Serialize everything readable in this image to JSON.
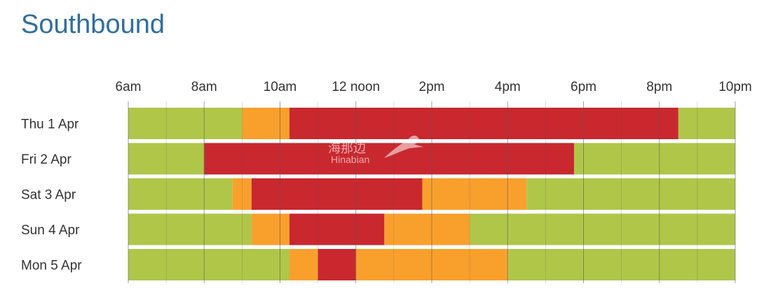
{
  "title": "Southbound",
  "watermark": {
    "cn": "海那边",
    "en": "Hinabian"
  },
  "colors": {
    "light": "#b0c649",
    "moderate": "#f9a02c",
    "heavy": "#c9282f",
    "grid": "#555555"
  },
  "chart_data": {
    "type": "timeline",
    "title": "Southbound",
    "x_unit": "hour",
    "xlim": [
      6,
      22
    ],
    "x_ticks": [
      {
        "value": 6,
        "label": "6am"
      },
      {
        "value": 8,
        "label": "8am"
      },
      {
        "value": 10,
        "label": "10am"
      },
      {
        "value": 12,
        "label": "12 noon"
      },
      {
        "value": 14,
        "label": "2pm"
      },
      {
        "value": 16,
        "label": "4pm"
      },
      {
        "value": 18,
        "label": "6pm"
      },
      {
        "value": 20,
        "label": "8pm"
      },
      {
        "value": 22,
        "label": "10pm"
      }
    ],
    "grid": "vertical",
    "rows": [
      {
        "label": "Thu 1 Apr",
        "segments": [
          {
            "start": 6,
            "end": 9,
            "level": "light"
          },
          {
            "start": 9,
            "end": 10.25,
            "level": "moderate"
          },
          {
            "start": 10.25,
            "end": 20.5,
            "level": "heavy"
          },
          {
            "start": 20.5,
            "end": 22,
            "level": "light"
          }
        ]
      },
      {
        "label": "Fri 2 Apr",
        "segments": [
          {
            "start": 6,
            "end": 8,
            "level": "light"
          },
          {
            "start": 8,
            "end": 17.75,
            "level": "heavy"
          },
          {
            "start": 17.75,
            "end": 22,
            "level": "light"
          }
        ]
      },
      {
        "label": "Sat 3 Apr",
        "segments": [
          {
            "start": 6,
            "end": 8.75,
            "level": "light"
          },
          {
            "start": 8.75,
            "end": 9.25,
            "level": "moderate"
          },
          {
            "start": 9.25,
            "end": 13.75,
            "level": "heavy"
          },
          {
            "start": 13.75,
            "end": 16.5,
            "level": "moderate"
          },
          {
            "start": 16.5,
            "end": 22,
            "level": "light"
          }
        ]
      },
      {
        "label": "Sun 4 Apr",
        "segments": [
          {
            "start": 6,
            "end": 9.25,
            "level": "light"
          },
          {
            "start": 9.25,
            "end": 10.25,
            "level": "moderate"
          },
          {
            "start": 10.25,
            "end": 12.75,
            "level": "heavy"
          },
          {
            "start": 12.75,
            "end": 15,
            "level": "moderate"
          },
          {
            "start": 15,
            "end": 22,
            "level": "light"
          }
        ]
      },
      {
        "label": "Mon 5 Apr",
        "segments": [
          {
            "start": 6,
            "end": 10.25,
            "level": "light"
          },
          {
            "start": 10.25,
            "end": 11,
            "level": "moderate"
          },
          {
            "start": 11,
            "end": 12,
            "level": "heavy"
          },
          {
            "start": 12,
            "end": 16,
            "level": "moderate"
          },
          {
            "start": 16,
            "end": 22,
            "level": "light"
          }
        ]
      }
    ]
  }
}
